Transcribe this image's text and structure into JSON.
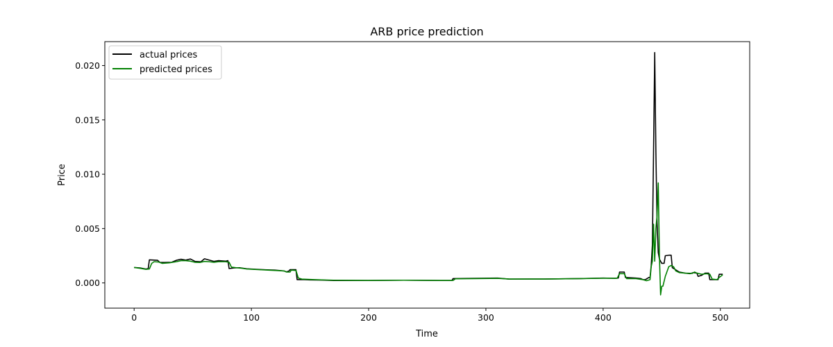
{
  "chart_data": {
    "type": "line",
    "title": "ARB price prediction",
    "xlabel": "Time",
    "ylabel": "Price",
    "xlim": [
      -25,
      525
    ],
    "ylim": [
      -0.00232,
      0.0222
    ],
    "xticks": [
      0,
      100,
      200,
      300,
      400,
      500
    ],
    "xtick_labels": [
      "0",
      "100",
      "200",
      "300",
      "400",
      "500"
    ],
    "yticks": [
      0.0,
      0.005,
      0.01,
      0.015,
      0.02
    ],
    "ytick_labels": [
      "0.000",
      "0.005",
      "0.010",
      "0.015",
      "0.020"
    ],
    "grid": false,
    "legend": "top-left",
    "series": [
      {
        "name": "actual prices",
        "color": "#000000",
        "points": [
          [
            0,
            0.00142
          ],
          [
            5,
            0.00138
          ],
          [
            10,
            0.00128
          ],
          [
            12,
            0.00132
          ],
          [
            13,
            0.00212
          ],
          [
            20,
            0.00208
          ],
          [
            22,
            0.00188
          ],
          [
            26,
            0.00188
          ],
          [
            32,
            0.0019
          ],
          [
            36,
            0.00208
          ],
          [
            40,
            0.00218
          ],
          [
            44,
            0.0021
          ],
          [
            48,
            0.0022
          ],
          [
            52,
            0.00198
          ],
          [
            57,
            0.00195
          ],
          [
            60,
            0.00222
          ],
          [
            64,
            0.0021
          ],
          [
            68,
            0.00198
          ],
          [
            72,
            0.00205
          ],
          [
            78,
            0.002
          ],
          [
            80,
            0.00205
          ],
          [
            81,
            0.00132
          ],
          [
            85,
            0.00138
          ],
          [
            90,
            0.0014
          ],
          [
            96,
            0.0013
          ],
          [
            100,
            0.00128
          ],
          [
            110,
            0.00122
          ],
          [
            120,
            0.00118
          ],
          [
            128,
            0.0011
          ],
          [
            130,
            0.00102
          ],
          [
            132,
            0.0011
          ],
          [
            133,
            0.00122
          ],
          [
            138,
            0.00122
          ],
          [
            139,
            0.0003
          ],
          [
            145,
            0.0003
          ],
          [
            150,
            0.00028
          ],
          [
            160,
            0.00026
          ],
          [
            170,
            0.00022
          ],
          [
            200,
            0.00022
          ],
          [
            230,
            0.00025
          ],
          [
            260,
            0.00022
          ],
          [
            271,
            0.00022
          ],
          [
            272,
            0.0004
          ],
          [
            290,
            0.00042
          ],
          [
            310,
            0.00045
          ],
          [
            320,
            0.00035
          ],
          [
            350,
            0.00036
          ],
          [
            380,
            0.0004
          ],
          [
            400,
            0.00045
          ],
          [
            410,
            0.00042
          ],
          [
            413,
            0.00045
          ],
          [
            414,
            0.001
          ],
          [
            418,
            0.001
          ],
          [
            419,
            0.0005
          ],
          [
            428,
            0.00045
          ],
          [
            432,
            0.0004
          ],
          [
            434,
            0.0003
          ],
          [
            436,
            0.0003
          ],
          [
            439,
            0.0005
          ],
          [
            440,
            0.0005
          ],
          [
            441,
            0.0016
          ],
          [
            442,
            0.0035
          ],
          [
            443,
            0.012
          ],
          [
            444,
            0.0212
          ],
          [
            445,
            0.012
          ],
          [
            446,
            0.0055
          ],
          [
            447,
            0.0028
          ],
          [
            448,
            0.0022
          ],
          [
            450,
            0.0018
          ],
          [
            451,
            0.0018
          ],
          [
            452,
            0.0018
          ],
          [
            453,
            0.0025
          ],
          [
            456,
            0.00255
          ],
          [
            458,
            0.00255
          ],
          [
            459,
            0.0014
          ],
          [
            462,
            0.0012
          ],
          [
            465,
            0.001
          ],
          [
            470,
            0.0009
          ],
          [
            474,
            0.00085
          ],
          [
            477,
            0.00095
          ],
          [
            480,
            0.0009
          ],
          [
            481,
            0.0006
          ],
          [
            484,
            0.0007
          ],
          [
            487,
            0.0009
          ],
          [
            490,
            0.0009
          ],
          [
            491,
            0.0003
          ],
          [
            496,
            0.0003
          ],
          [
            498,
            0.0003
          ],
          [
            499,
            0.0008
          ],
          [
            502,
            0.0008
          ]
        ]
      },
      {
        "name": "predicted prices",
        "color": "#008000",
        "points": [
          [
            0,
            0.00142
          ],
          [
            5,
            0.00135
          ],
          [
            10,
            0.00125
          ],
          [
            13,
            0.00128
          ],
          [
            15,
            0.0018
          ],
          [
            17,
            0.00195
          ],
          [
            21,
            0.00192
          ],
          [
            24,
            0.0018
          ],
          [
            30,
            0.00185
          ],
          [
            36,
            0.00195
          ],
          [
            40,
            0.00205
          ],
          [
            44,
            0.00205
          ],
          [
            48,
            0.002
          ],
          [
            52,
            0.0019
          ],
          [
            56,
            0.00188
          ],
          [
            60,
            0.00198
          ],
          [
            64,
            0.00195
          ],
          [
            68,
            0.0019
          ],
          [
            72,
            0.00195
          ],
          [
            78,
            0.00195
          ],
          [
            81,
            0.0019
          ],
          [
            83,
            0.00145
          ],
          [
            87,
            0.0014
          ],
          [
            92,
            0.00135
          ],
          [
            96,
            0.00128
          ],
          [
            100,
            0.00126
          ],
          [
            110,
            0.0012
          ],
          [
            120,
            0.00115
          ],
          [
            128,
            0.0011
          ],
          [
            130,
            0.001
          ],
          [
            133,
            0.001
          ],
          [
            134,
            0.00118
          ],
          [
            138,
            0.00115
          ],
          [
            140,
            0.00045
          ],
          [
            143,
            0.00035
          ],
          [
            150,
            0.00032
          ],
          [
            160,
            0.00028
          ],
          [
            170,
            0.00025
          ],
          [
            200,
            0.00023
          ],
          [
            230,
            0.00025
          ],
          [
            260,
            0.00023
          ],
          [
            272,
            0.00023
          ],
          [
            274,
            0.00038
          ],
          [
            290,
            0.0004
          ],
          [
            310,
            0.00042
          ],
          [
            320,
            0.00036
          ],
          [
            350,
            0.00036
          ],
          [
            380,
            0.0004
          ],
          [
            400,
            0.00043
          ],
          [
            412,
            0.00043
          ],
          [
            414,
            0.00085
          ],
          [
            418,
            0.00085
          ],
          [
            420,
            0.0004
          ],
          [
            428,
            0.0004
          ],
          [
            434,
            0.0003
          ],
          [
            437,
            0.0002
          ],
          [
            440,
            0.0003
          ],
          [
            441,
            0.0015
          ],
          [
            442,
            0.002
          ],
          [
            443,
            0.0054
          ],
          [
            444,
            0.002
          ],
          [
            445,
            0.005
          ],
          [
            446,
            0.0062
          ],
          [
            447,
            0.0092
          ],
          [
            448,
            0.0025
          ],
          [
            449,
            -0.0011
          ],
          [
            450,
            -0.0003
          ],
          [
            451,
            -0.0003
          ],
          [
            453,
            0.0006
          ],
          [
            456,
            0.0015
          ],
          [
            458,
            0.0016
          ],
          [
            460,
            0.0015
          ],
          [
            462,
            0.0011
          ],
          [
            465,
            0.00095
          ],
          [
            470,
            0.0009
          ],
          [
            476,
            0.00088
          ],
          [
            478,
            0.001
          ],
          [
            480,
            0.0009
          ],
          [
            484,
            0.0008
          ],
          [
            488,
            0.00085
          ],
          [
            491,
            0.0008
          ],
          [
            493,
            0.00035
          ],
          [
            497,
            0.0003
          ],
          [
            499,
            0.0005
          ],
          [
            502,
            0.00075
          ]
        ]
      }
    ]
  }
}
